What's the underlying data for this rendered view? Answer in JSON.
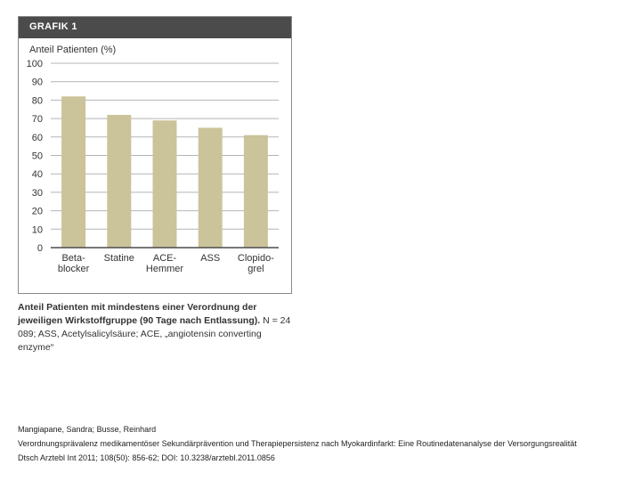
{
  "figure": {
    "header": "GRAFIK 1",
    "caption_bold": "Anteil Patienten mit mindestens einer Verordnung der jeweiligen Wirkstoffgruppe (90 Tage nach Entlassung).",
    "caption_normal": " N = 24 089; ASS, Acetylsalicylsäure; ACE, „angiotensin converting enzyme“"
  },
  "chart_data": {
    "type": "bar",
    "title": "",
    "ylabel": "Anteil Patienten (%)",
    "xlabel": "",
    "ylim": [
      0,
      100
    ],
    "yticks": [
      0,
      10,
      20,
      30,
      40,
      50,
      60,
      70,
      80,
      90,
      100
    ],
    "grid": true,
    "categories": [
      [
        "Beta-",
        "blocker"
      ],
      [
        "Statine"
      ],
      [
        "ACE-",
        "Hemmer"
      ],
      [
        "ASS"
      ],
      [
        "Clopido-",
        "grel"
      ]
    ],
    "values": [
      82,
      72,
      69,
      65,
      61
    ],
    "bar_color": "#cbc39a",
    "grid_color": "#b5b5b5",
    "axis_color": "#4b4b4b"
  },
  "citation": {
    "authors": "Mangiapane, Sandra; Busse, Reinhard",
    "title": "Verordnungsprävalenz medikamentöser Sekundärprävention und Therapiepersistenz nach Myokardinfarkt: Eine Routinedatenanalyse der Versorgungsrealität",
    "reference": "Dtsch Arztebl Int 2011; 108(50): 856-62; DOI: 10.3238/arztebl.2011.0856"
  }
}
